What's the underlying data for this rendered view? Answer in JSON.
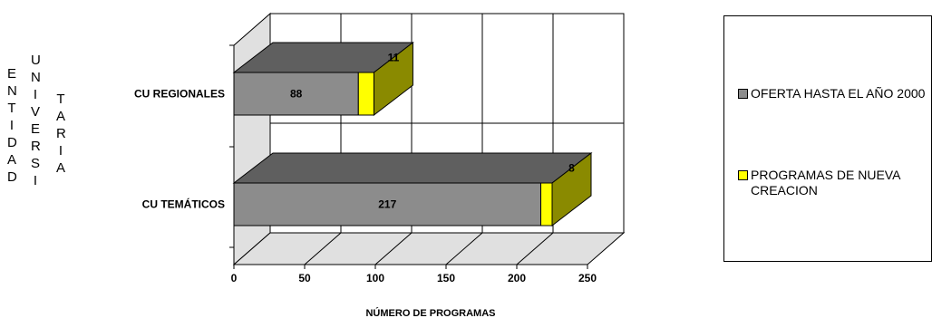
{
  "chart_data": {
    "type": "bar",
    "orientation": "horizontal",
    "stacked": true,
    "three_d": true,
    "categories": [
      "CU REGIONALES",
      "CU TEMÁTICOS"
    ],
    "series": [
      {
        "name": "OFERTA HASTA EL AÑO 2000",
        "values": [
          88,
          217
        ],
        "color": "#8c8c8c"
      },
      {
        "name": "PROGRAMAS DE NUEVA CREACION",
        "values": [
          11,
          8
        ],
        "color": "#ffff00"
      }
    ],
    "xlabel": "NÚMERO DE PROGRAMAS",
    "ylabel_columns": [
      "ENTIDAD",
      "UNIVERSI",
      "TARIA"
    ],
    "xlim": [
      0,
      250
    ],
    "xticks": [
      0,
      50,
      100,
      150,
      200,
      250
    ],
    "grid": true,
    "legend_position": "right",
    "colors": {
      "floor": "#e0e0e0",
      "depth_dark": "#5f5f5f",
      "depth_olive": "#8a8a00"
    }
  }
}
